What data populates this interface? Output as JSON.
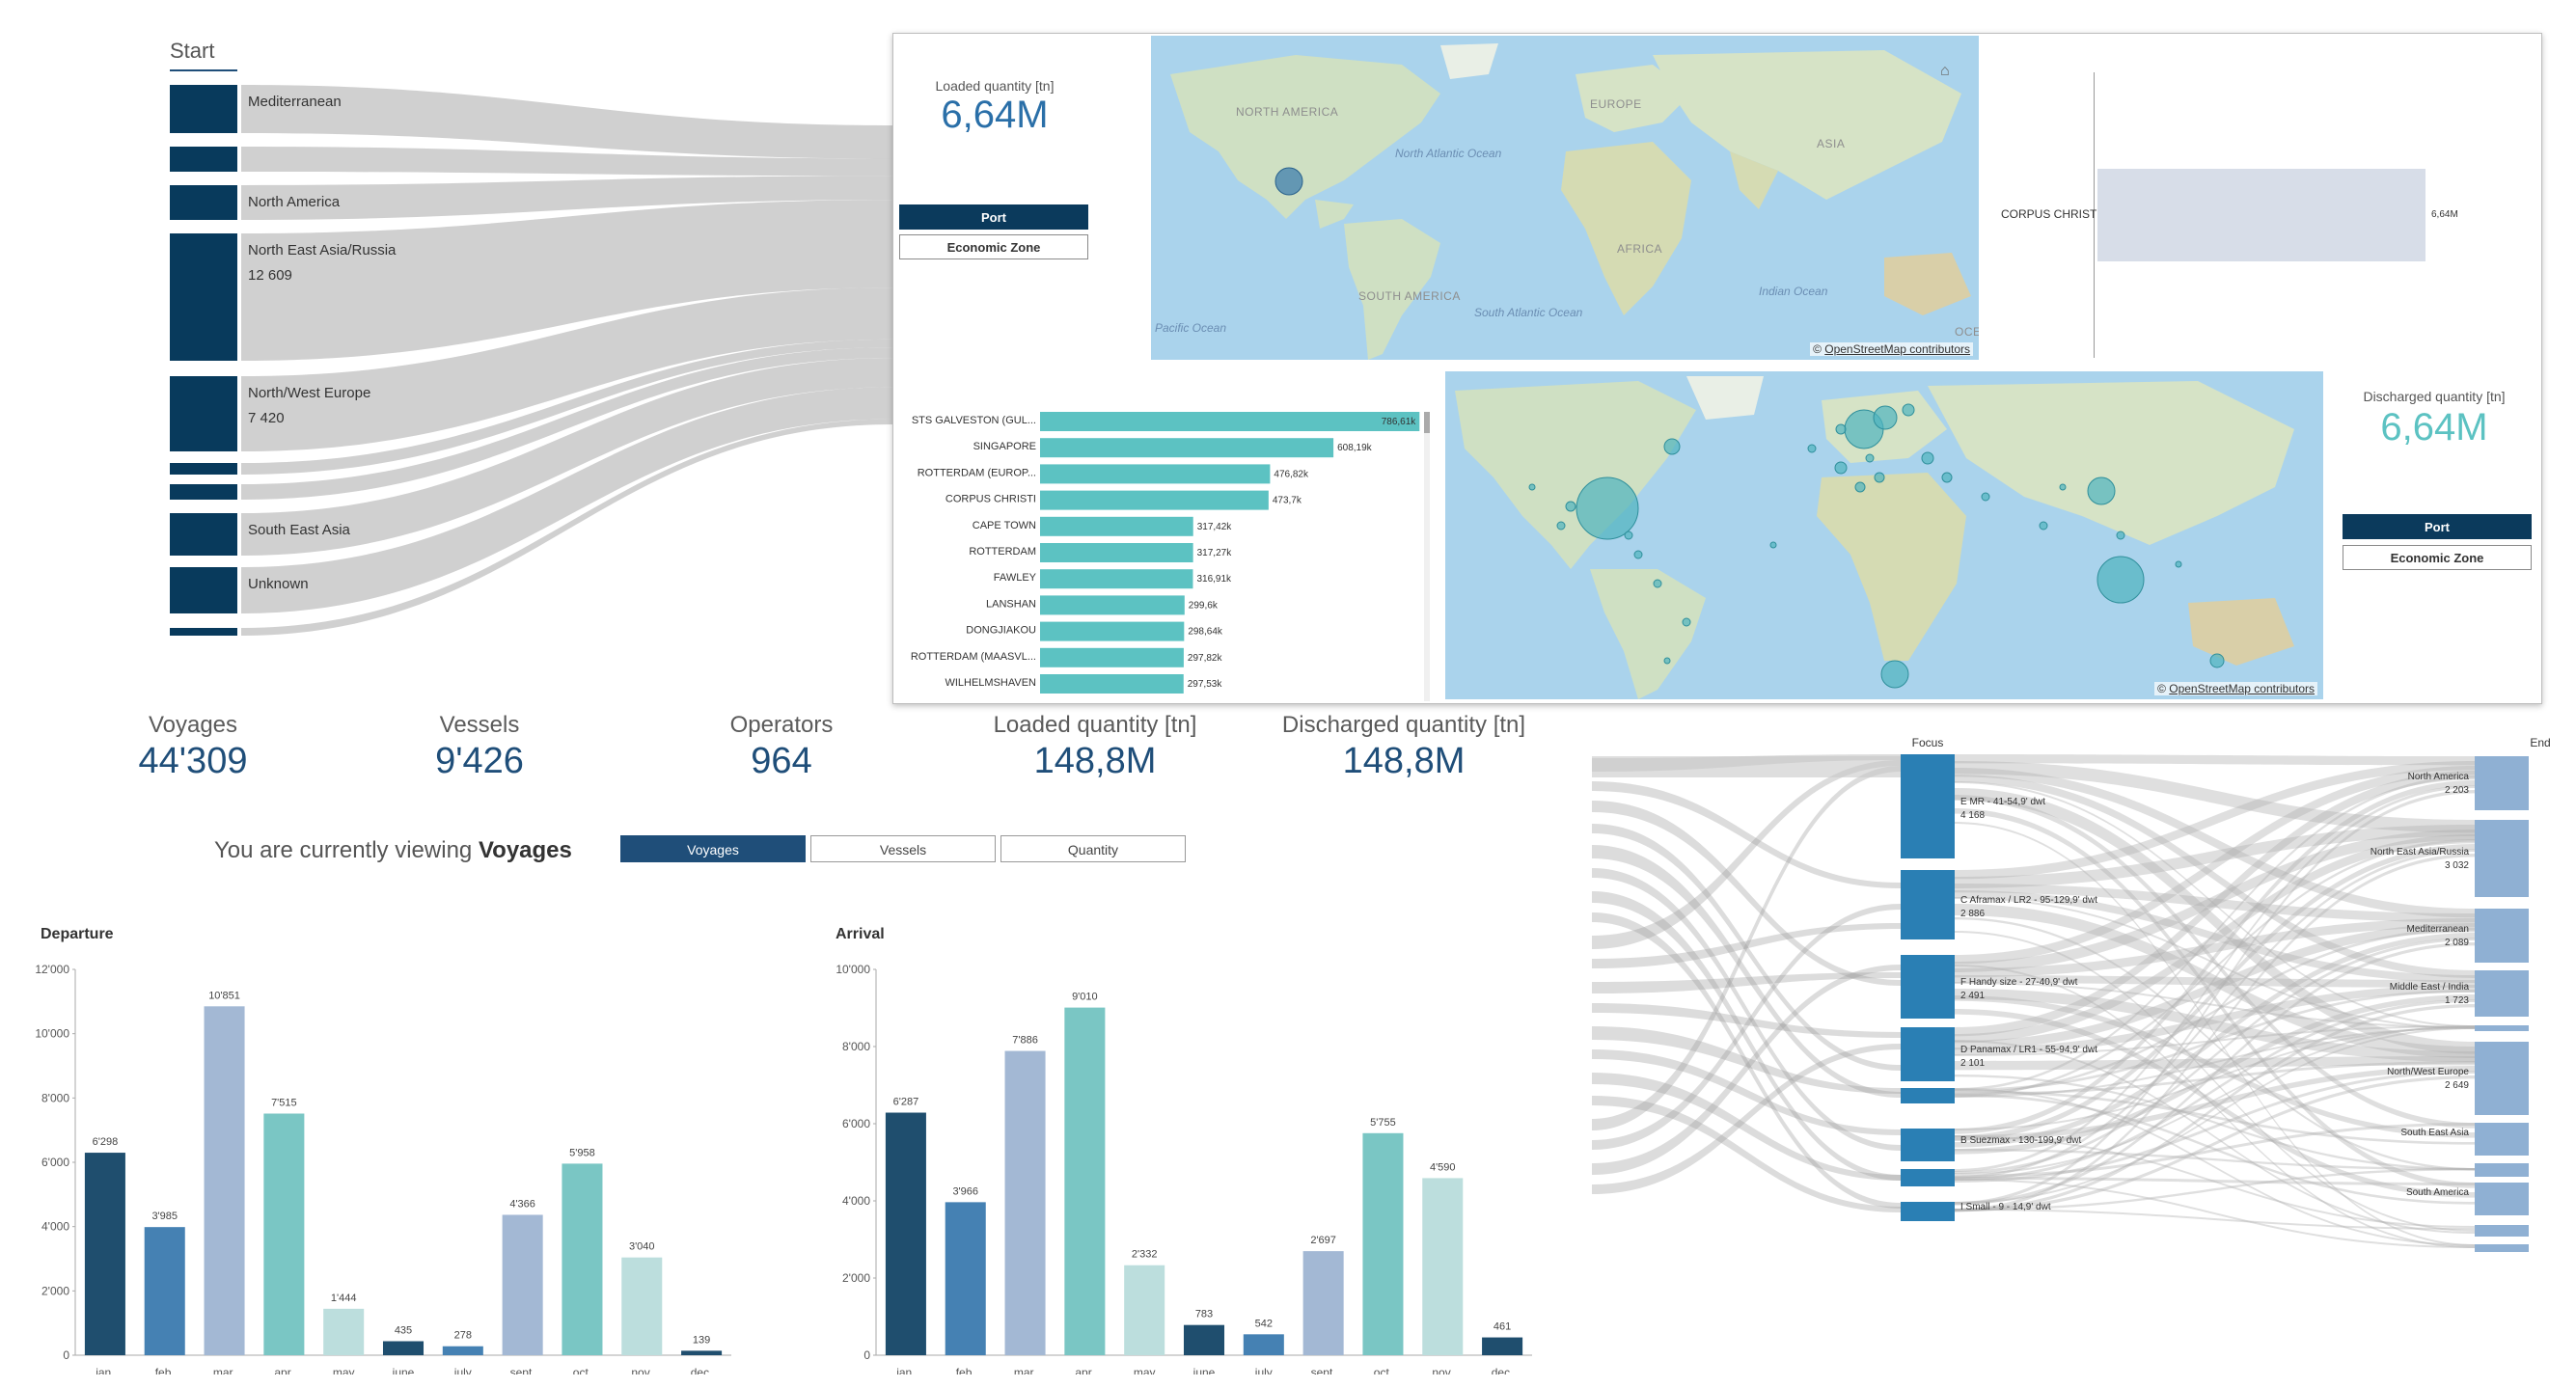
{
  "colors": {
    "navy": "#1f4e79",
    "dark": "#0b3a5c",
    "teal": "#5cc2c2",
    "light_grey": "#d7dde8",
    "band": "#c8c8c8"
  },
  "start_sankey": {
    "title": "Start",
    "nodes": [
      {
        "label": "Mediterranean",
        "sub": ""
      },
      {
        "label": "",
        "sub": ""
      },
      {
        "label": "North America",
        "sub": ""
      },
      {
        "label": "North East Asia/Russia",
        "sub": "12 609"
      },
      {
        "label": "North/West Europe",
        "sub": "7 420"
      },
      {
        "label": "",
        "sub": ""
      },
      {
        "label": "",
        "sub": ""
      },
      {
        "label": "South East Asia",
        "sub": ""
      },
      {
        "label": "Unknown",
        "sub": ""
      },
      {
        "label": "",
        "sub": ""
      }
    ]
  },
  "popup": {
    "loaded": {
      "label": "Loaded quantity [tn]",
      "value": "6,64M"
    },
    "discharged": {
      "label": "Discharged quantity [tn]",
      "value": "6,64M"
    },
    "toggle": {
      "port": "Port",
      "economic_zone": "Economic Zone"
    },
    "map_attribution_prefix": "©",
    "map_attribution_link": "OpenStreetMap contributors",
    "map1_labels": {
      "north_america": "NORTH AMERICA",
      "europe": "EUROPE",
      "asia": "ASIA",
      "africa": "AFRICA",
      "south_america": "SOUTH AMERICA",
      "north_atlantic": "North Atlantic Ocean",
      "south_atlantic": "South Atlantic Ocean",
      "indian": "Indian Ocean",
      "pacific": "Pacific Ocean",
      "oc": "OCE"
    },
    "corpus_bar": {
      "label": "CORPUS CHRISTI",
      "value": "6,64M"
    },
    "ports": [
      {
        "name": "STS GALVESTON (GUL...",
        "label": "786,61k",
        "value": 786.61
      },
      {
        "name": "SINGAPORE",
        "label": "608,19k",
        "value": 608.19
      },
      {
        "name": "ROTTERDAM (EUROP...",
        "label": "476,82k",
        "value": 476.82
      },
      {
        "name": "CORPUS CHRISTI",
        "label": "473,7k",
        "value": 473.7
      },
      {
        "name": "CAPE TOWN",
        "label": "317,42k",
        "value": 317.42
      },
      {
        "name": "ROTTERDAM",
        "label": "317,27k",
        "value": 317.27
      },
      {
        "name": "FAWLEY",
        "label": "316,91k",
        "value": 316.91
      },
      {
        "name": "LANSHAN",
        "label": "299,6k",
        "value": 299.6
      },
      {
        "name": "DONGJIAKOU",
        "label": "298,64k",
        "value": 298.64
      },
      {
        "name": "ROTTERDAM (MAASVL...",
        "label": "297,82k",
        "value": 297.82
      },
      {
        "name": "WILHELMSHAVEN",
        "label": "297,53k",
        "value": 297.53
      }
    ]
  },
  "kpis": [
    {
      "label": "Voyages",
      "value": "44'309"
    },
    {
      "label": "Vessels",
      "value": "9'426"
    },
    {
      "label": "Operators",
      "value": "964"
    },
    {
      "label": "Loaded quantity [tn]",
      "value": "148,8M"
    },
    {
      "label": "Discharged quantity [tn]",
      "value": "148,8M"
    }
  ],
  "viewing": {
    "prefix": "You are currently viewing",
    "current": "Voyages",
    "buttons": [
      "Voyages",
      "Vessels",
      "Quantity"
    ]
  },
  "chart_data": [
    {
      "type": "bar",
      "title": "Departure",
      "categories": [
        "jan.",
        "feb.",
        "mar.",
        "apr.",
        "may",
        "june",
        "july",
        "sept.",
        "oct.",
        "nov.",
        "dec."
      ],
      "values": [
        6298,
        3985,
        10851,
        7515,
        1444,
        435,
        278,
        4366,
        5958,
        3040,
        139
      ],
      "value_labels": [
        "6'298",
        "3'985",
        "10'851",
        "7'515",
        "1'444",
        "435",
        "278",
        "4'366",
        "5'958",
        "3'040",
        "139"
      ],
      "yticks": [
        "0",
        "2'000",
        "4'000",
        "6'000",
        "8'000",
        "10'000",
        "12'000"
      ],
      "ylim": [
        0,
        12000
      ],
      "bar_colors": [
        "#1f4e6e",
        "#4581b3",
        "#a3b8d4",
        "#7ac6c4",
        "#bcdedd",
        "#1f4e6e",
        "#4581b3",
        "#a3b8d4",
        "#7ac6c4",
        "#bcdedd",
        "#1f4e6e"
      ]
    },
    {
      "type": "bar",
      "title": "Arrival",
      "categories": [
        "jan.",
        "feb.",
        "mar.",
        "apr.",
        "may",
        "june",
        "july",
        "sept.",
        "oct.",
        "nov.",
        "dec."
      ],
      "values": [
        6287,
        3966,
        7886,
        9010,
        2332,
        783,
        542,
        2697,
        5755,
        4590,
        461
      ],
      "value_labels": [
        "6'287",
        "3'966",
        "7'886",
        "9'010",
        "2'332",
        "783",
        "542",
        "2'697",
        "5'755",
        "4'590",
        "461"
      ],
      "yticks": [
        "0",
        "2'000",
        "4'000",
        "6'000",
        "8'000",
        "10'000"
      ],
      "ylim": [
        0,
        10000
      ],
      "bar_colors": [
        "#1f4e6e",
        "#4581b3",
        "#a3b8d4",
        "#7ac6c4",
        "#bcdedd",
        "#1f4e6e",
        "#4581b3",
        "#a3b8d4",
        "#7ac6c4",
        "#bcdedd",
        "#1f4e6e"
      ]
    }
  ],
  "focus_sankey": {
    "focus_title": "Focus",
    "end_title": "End",
    "focus_nodes": [
      {
        "label": "E MR - 41-54,9' dwt",
        "sub": "4 168"
      },
      {
        "label": "C Aframax / LR2 - 95-129,9' dwt",
        "sub": "2 886"
      },
      {
        "label": "F Handy size - 27-40,9' dwt",
        "sub": "2 491"
      },
      {
        "label": "D Panamax / LR1 - 55-94,9' dwt",
        "sub": "2 101"
      },
      {
        "label": "",
        "sub": ""
      },
      {
        "label": "B Suezmax - 130-199,9' dwt",
        "sub": ""
      },
      {
        "label": "",
        "sub": ""
      },
      {
        "label": "I Small - 9 - 14,9' dwt",
        "sub": ""
      }
    ],
    "end_nodes": [
      {
        "label": "North America",
        "sub": "2 203"
      },
      {
        "label": "North East Asia/Russia",
        "sub": "3 032"
      },
      {
        "label": "Mediterranean",
        "sub": "2 089"
      },
      {
        "label": "Middle East / India",
        "sub": "1 723"
      },
      {
        "label": "",
        "sub": ""
      },
      {
        "label": "North/West Europe",
        "sub": "2 649"
      },
      {
        "label": "South East Asia",
        "sub": ""
      },
      {
        "label": "",
        "sub": ""
      },
      {
        "label": "South America",
        "sub": ""
      },
      {
        "label": "",
        "sub": ""
      },
      {
        "label": "",
        "sub": ""
      }
    ]
  }
}
